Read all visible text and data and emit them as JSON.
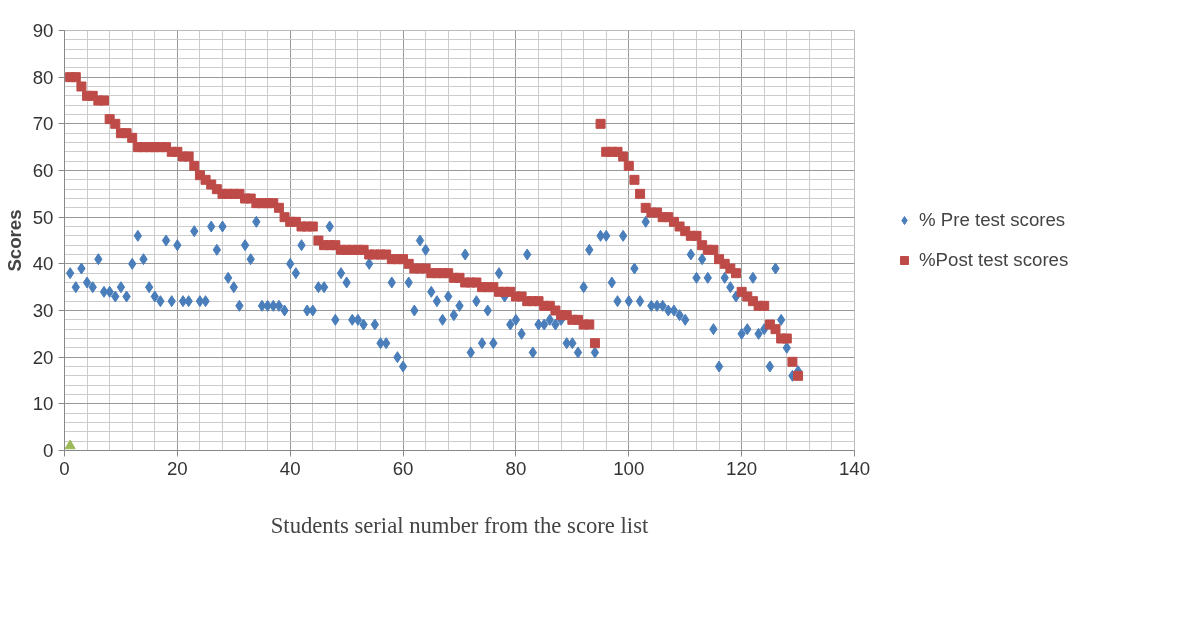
{
  "chart_data": {
    "type": "scatter",
    "xlabel": "Students serial number from the score list",
    "ylabel": "Scores",
    "xlim": [
      0,
      140
    ],
    "xticks": [
      0,
      20,
      40,
      60,
      80,
      100,
      120,
      140
    ],
    "ylim": [
      0,
      90
    ],
    "yticks": [
      0,
      10,
      20,
      30,
      40,
      50,
      60,
      70,
      80,
      90
    ],
    "grid": true,
    "legend": "right",
    "series": [
      {
        "name": "% Pre test scores",
        "color": "#4a7ebb",
        "marker": "diamond",
        "x": [
          1,
          2,
          3,
          4,
          5,
          6,
          7,
          8,
          9,
          10,
          11,
          12,
          13,
          14,
          15,
          16,
          17,
          18,
          19,
          20,
          21,
          22,
          23,
          24,
          25,
          26,
          27,
          28,
          29,
          30,
          31,
          32,
          33,
          34,
          35,
          36,
          37,
          38,
          39,
          40,
          41,
          42,
          43,
          44,
          45,
          46,
          47,
          48,
          49,
          50,
          51,
          52,
          53,
          54,
          55,
          56,
          57,
          58,
          59,
          60,
          61,
          62,
          63,
          64,
          65,
          66,
          67,
          68,
          69,
          70,
          71,
          72,
          73,
          74,
          75,
          76,
          77,
          78,
          79,
          80,
          81,
          82,
          83,
          84,
          85,
          86,
          87,
          88,
          89,
          90,
          91,
          92,
          93,
          94,
          95,
          96,
          97,
          98,
          99,
          100,
          101,
          102,
          103,
          104,
          105,
          106,
          107,
          108,
          109,
          110,
          111,
          112,
          113,
          114,
          115,
          116,
          117,
          118,
          119,
          120,
          121,
          122,
          123,
          124,
          125,
          126,
          127,
          128,
          129,
          130
        ],
        "values": [
          38,
          35,
          39,
          36,
          35,
          41,
          34,
          34,
          33,
          35,
          33,
          40,
          46,
          41,
          35,
          33,
          32,
          45,
          32,
          44,
          32,
          32,
          47,
          32,
          32,
          48,
          43,
          48,
          37,
          35,
          31,
          44,
          41,
          49,
          31,
          31,
          31,
          31,
          30,
          40,
          38,
          44,
          30,
          30,
          35,
          35,
          48,
          28,
          38,
          36,
          28,
          28,
          27,
          40,
          27,
          23,
          23,
          36,
          20,
          18,
          36,
          30,
          45,
          43,
          34,
          32,
          28,
          33,
          29,
          31,
          42,
          21,
          32,
          23,
          30,
          23,
          38,
          33,
          27,
          28,
          25,
          42,
          21,
          27,
          27,
          28,
          27,
          28,
          23,
          23,
          21,
          35,
          43,
          21,
          46,
          46,
          36,
          32,
          46,
          32,
          39,
          32,
          49,
          31,
          31,
          31,
          30,
          30,
          29,
          28,
          42,
          37,
          41,
          37,
          26,
          18,
          37,
          35,
          33,
          25,
          26,
          37,
          25,
          26,
          18,
          39,
          28,
          22,
          16,
          17
        ]
      },
      {
        "name": "%Post test scores",
        "color": "#be4b48",
        "marker": "square",
        "x": [
          1,
          2,
          3,
          4,
          5,
          6,
          7,
          8,
          9,
          10,
          11,
          12,
          13,
          14,
          15,
          16,
          17,
          18,
          19,
          20,
          21,
          22,
          23,
          24,
          25,
          26,
          27,
          28,
          29,
          30,
          31,
          32,
          33,
          34,
          35,
          36,
          37,
          38,
          39,
          40,
          41,
          42,
          43,
          44,
          45,
          46,
          47,
          48,
          49,
          50,
          51,
          52,
          53,
          54,
          55,
          56,
          57,
          58,
          59,
          60,
          61,
          62,
          63,
          64,
          65,
          66,
          67,
          68,
          69,
          70,
          71,
          72,
          73,
          74,
          75,
          76,
          77,
          78,
          79,
          80,
          81,
          82,
          83,
          84,
          85,
          86,
          87,
          88,
          89,
          90,
          91,
          92,
          93,
          94,
          95,
          96,
          97,
          98,
          99,
          100,
          101,
          102,
          103,
          104,
          105,
          106,
          107,
          108,
          109,
          110,
          111,
          112,
          113,
          114,
          115,
          116,
          117,
          118,
          119,
          120,
          121,
          122,
          123,
          124,
          125,
          126,
          127,
          128,
          129,
          130
        ],
        "values": [
          80,
          80,
          78,
          76,
          76,
          75,
          75,
          71,
          70,
          68,
          68,
          67,
          65,
          65,
          65,
          65,
          65,
          65,
          64,
          64,
          63,
          63,
          61,
          59,
          58,
          57,
          56,
          55,
          55,
          55,
          55,
          54,
          54,
          53,
          53,
          53,
          53,
          52,
          50,
          49,
          49,
          48,
          48,
          48,
          45,
          44,
          44,
          44,
          43,
          43,
          43,
          43,
          43,
          42,
          42,
          42,
          42,
          41,
          41,
          41,
          40,
          39,
          39,
          39,
          38,
          38,
          38,
          38,
          37,
          37,
          36,
          36,
          36,
          35,
          35,
          35,
          34,
          34,
          34,
          33,
          33,
          32,
          32,
          32,
          31,
          31,
          30,
          29,
          29,
          28,
          28,
          27,
          27,
          23,
          70,
          64,
          64,
          64,
          63,
          61,
          58,
          55,
          52,
          51,
          51,
          50,
          50,
          49,
          48,
          47,
          46,
          46,
          44,
          43,
          43,
          41,
          40,
          39,
          38,
          34,
          33,
          32,
          31,
          31,
          27,
          26,
          24,
          24,
          19,
          16
        ]
      },
      {
        "color": "#9bbb59",
        "marker": "triangle",
        "x": [
          1
        ],
        "values": [
          1
        ]
      }
    ]
  }
}
